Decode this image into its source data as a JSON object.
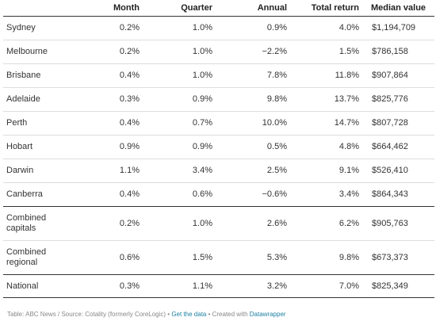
{
  "columns": [
    "",
    "Month",
    "Quarter",
    "Annual",
    "Total return",
    "Median value"
  ],
  "rows": [
    {
      "name": "Sydney",
      "month": "0.2%",
      "quarter": "1.0%",
      "annual": "0.9%",
      "total": "4.0%",
      "median": "$1,194,709"
    },
    {
      "name": "Melbourne",
      "month": "0.2%",
      "quarter": "1.0%",
      "annual": "−2.2%",
      "total": "1.5%",
      "median": "$786,158"
    },
    {
      "name": "Brisbane",
      "month": "0.4%",
      "quarter": "1.0%",
      "annual": "7.8%",
      "total": "11.8%",
      "median": "$907,864"
    },
    {
      "name": "Adelaide",
      "month": "0.3%",
      "quarter": "0.9%",
      "annual": "9.8%",
      "total": "13.7%",
      "median": "$825,776"
    },
    {
      "name": "Perth",
      "month": "0.4%",
      "quarter": "0.7%",
      "annual": "10.0%",
      "total": "14.7%",
      "median": "$807,728"
    },
    {
      "name": "Hobart",
      "month": "0.9%",
      "quarter": "0.9%",
      "annual": "0.5%",
      "total": "4.8%",
      "median": "$664,462"
    },
    {
      "name": "Darwin",
      "month": "1.1%",
      "quarter": "3.4%",
      "annual": "2.5%",
      "total": "9.1%",
      "median": "$526,410"
    },
    {
      "name": "Canberra",
      "month": "0.4%",
      "quarter": "0.6%",
      "annual": "−0.6%",
      "total": "3.4%",
      "median": "$864,343"
    },
    {
      "name_line1": "Combined",
      "name_line2": "capitals",
      "month": "0.2%",
      "quarter": "1.0%",
      "annual": "2.6%",
      "total": "6.2%",
      "median": "$905,763"
    },
    {
      "name_line1": "Combined",
      "name_line2": "regional",
      "month": "0.6%",
      "quarter": "1.5%",
      "annual": "5.3%",
      "total": "9.8%",
      "median": "$673,373"
    },
    {
      "name": "National",
      "month": "0.3%",
      "quarter": "1.1%",
      "annual": "3.2%",
      "total": "7.0%",
      "median": "$825,349"
    }
  ],
  "footer": {
    "source": "Table: ABC News / Source: Cotality (formerly CoreLogic) • ",
    "get_data": "Get the data",
    "created": " • Created with ",
    "tool": "Datawrapper"
  },
  "colors": {
    "link": "#1d81a2",
    "rule": "#333333",
    "gridline": "#dddddd"
  }
}
